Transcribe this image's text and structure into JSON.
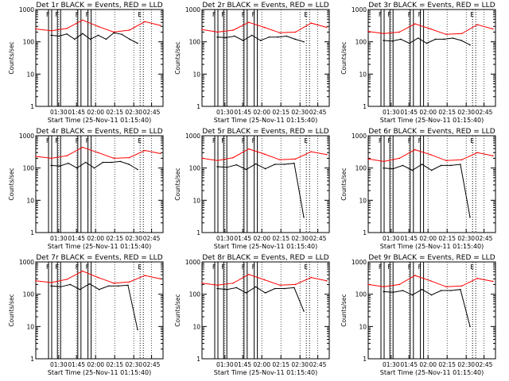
{
  "window": {
    "width": 640,
    "height": 480
  },
  "colors": {
    "events": "#000000",
    "lld": "#ff0000",
    "background": "#ffffff"
  },
  "chart_data": [
    {
      "type": "line",
      "title": "Det 1r BLACK = Events, RED = LLD",
      "xlabel": "Start Time (25-Nov-11 01:15:40)",
      "ylabel": "Counts/sec",
      "y_scale": "log",
      "ylim": [
        1,
        1000
      ],
      "y_ticks": [
        "1",
        "10",
        "100",
        "1000"
      ],
      "x_ticks": [
        "01:30",
        "01:45",
        "02:00",
        "02:15",
        "02:30",
        "02:45"
      ],
      "flags": [
        "F",
        "F",
        "F",
        "F",
        "E"
      ],
      "series": [
        {
          "name": "BLACK",
          "color": "black",
          "values": [
            160,
            150,
            175,
            120,
            180,
            120,
            160,
            120,
            190,
            170,
            120,
            90
          ]
        },
        {
          "name": "RED",
          "color": "red",
          "values": [
            250,
            220,
            260,
            470,
            300,
            200,
            230,
            420,
            320
          ]
        }
      ]
    },
    {
      "type": "line",
      "title": "Det 2r BLACK = Events, RED = LLD",
      "xlabel": "Start Time (25-Nov-11 01:15:40)",
      "ylabel": "Counts/sec",
      "y_scale": "log",
      "ylim": [
        1,
        1000
      ],
      "y_ticks": [
        "1",
        "10",
        "100",
        "1000"
      ],
      "x_ticks": [
        "01:30",
        "01:45",
        "02:00",
        "02:15",
        "02:30",
        "02:45"
      ],
      "flags": [
        "F",
        "F",
        "F",
        "F",
        "E"
      ],
      "series": [
        {
          "name": "BLACK",
          "color": "black",
          "values": [
            140,
            135,
            150,
            110,
            160,
            110,
            140,
            140,
            150,
            120,
            100
          ]
        },
        {
          "name": "RED",
          "color": "red",
          "values": [
            240,
            200,
            230,
            400,
            280,
            190,
            200,
            380,
            280
          ]
        }
      ]
    },
    {
      "type": "line",
      "title": "Det 3r BLACK = Events, RED = LLD",
      "xlabel": "Start Time (25-Nov-11 01:15:40)",
      "ylabel": "Counts/sec",
      "y_scale": "log",
      "ylim": [
        1,
        1000
      ],
      "y_ticks": [
        "1",
        "10",
        "100",
        "1000"
      ],
      "x_ticks": [
        "01:30",
        "01:45",
        "02:00",
        "02:15",
        "02:30",
        "02:45"
      ],
      "flags": [
        "F",
        "F",
        "F",
        "F",
        "E"
      ],
      "series": [
        {
          "name": "BLACK",
          "color": "black",
          "values": [
            110,
            105,
            120,
            90,
            130,
            90,
            120,
            120,
            130,
            110,
            80
          ]
        },
        {
          "name": "RED",
          "color": "red",
          "values": [
            210,
            180,
            200,
            360,
            250,
            170,
            180,
            340,
            250
          ]
        }
      ]
    },
    {
      "type": "line",
      "title": "Det 4r BLACK = Events, RED = LLD",
      "xlabel": "Start Time (25-Nov-11 01:15:40)",
      "ylabel": "Counts/sec",
      "y_scale": "log",
      "ylim": [
        1,
        1000
      ],
      "y_ticks": [
        "1",
        "10",
        "100",
        "1000"
      ],
      "x_ticks": [
        "01:30",
        "01:45",
        "02:00",
        "02:15",
        "02:30",
        "02:45"
      ],
      "flags": [
        "F",
        "F",
        "F",
        "F",
        "E"
      ],
      "series": [
        {
          "name": "BLACK",
          "color": "black",
          "values": [
            120,
            115,
            140,
            100,
            150,
            100,
            150,
            150,
            160,
            130,
            90
          ]
        },
        {
          "name": "RED",
          "color": "red",
          "values": [
            230,
            200,
            240,
            440,
            300,
            200,
            210,
            350,
            280
          ]
        }
      ]
    },
    {
      "type": "line",
      "title": "Det 5r BLACK = Events, RED = LLD",
      "xlabel": "Start Time (25-Nov-11 01:15:40)",
      "ylabel": "Counts/sec",
      "y_scale": "log",
      "ylim": [
        1,
        1000
      ],
      "y_ticks": [
        "1",
        "10",
        "100",
        "1000"
      ],
      "x_ticks": [
        "01:30",
        "01:45",
        "02:00",
        "02:15",
        "02:30",
        "02:45"
      ],
      "flags": [
        "F",
        "F",
        "F",
        "F",
        "E"
      ],
      "series": [
        {
          "name": "BLACK",
          "color": "black",
          "values": [
            110,
            105,
            125,
            90,
            135,
            95,
            130,
            130,
            140,
            3
          ]
        },
        {
          "name": "RED",
          "color": "red",
          "values": [
            200,
            170,
            210,
            390,
            270,
            180,
            190,
            320,
            260
          ]
        }
      ]
    },
    {
      "type": "line",
      "title": "Det 6r BLACK = Events, RED = LLD",
      "xlabel": "Start Time (25-Nov-11 01:15:40)",
      "ylabel": "Counts/sec",
      "y_scale": "log",
      "ylim": [
        1,
        1000
      ],
      "y_ticks": [
        "1",
        "10",
        "100",
        "1000"
      ],
      "x_ticks": [
        "01:30",
        "01:45",
        "02:00",
        "02:15",
        "02:30",
        "02:45"
      ],
      "flags": [
        "F",
        "F",
        "F",
        "F",
        "E"
      ],
      "series": [
        {
          "name": "BLACK",
          "color": "black",
          "values": [
            100,
            95,
            120,
            85,
            130,
            85,
            120,
            120,
            130,
            3
          ]
        },
        {
          "name": "RED",
          "color": "red",
          "values": [
            190,
            160,
            200,
            370,
            260,
            170,
            180,
            300,
            240
          ]
        }
      ]
    },
    {
      "type": "line",
      "title": "Det 7r BLACK = Events, RED = LLD",
      "xlabel": "Start Time (25-Nov-11 01:15:40)",
      "ylabel": "Counts/sec",
      "y_scale": "log",
      "ylim": [
        1,
        1000
      ],
      "y_ticks": [
        "1",
        "10",
        "100",
        "1000"
      ],
      "x_ticks": [
        "01:30",
        "01:45",
        "02:00",
        "02:15",
        "02:30",
        "02:45"
      ],
      "flags": [
        "F",
        "F",
        "F",
        "F",
        "E"
      ],
      "series": [
        {
          "name": "BLACK",
          "color": "black",
          "values": [
            180,
            170,
            200,
            140,
            210,
            140,
            180,
            180,
            190,
            8
          ]
        },
        {
          "name": "RED",
          "color": "red",
          "values": [
            260,
            230,
            290,
            520,
            330,
            220,
            240,
            380,
            300
          ]
        }
      ]
    },
    {
      "type": "line",
      "title": "Det 8r BLACK = Events, RED = LLD",
      "xlabel": "Start Time (25-Nov-11 01:15:40)",
      "ylabel": "Counts/sec",
      "y_scale": "log",
      "ylim": [
        1,
        1000
      ],
      "y_ticks": [
        "1",
        "10",
        "100",
        "1000"
      ],
      "x_ticks": [
        "01:30",
        "01:45",
        "02:00",
        "02:15",
        "02:30",
        "02:45"
      ],
      "flags": [
        "F",
        "F",
        "F",
        "F",
        "E"
      ],
      "series": [
        {
          "name": "BLACK",
          "color": "black",
          "values": [
            150,
            140,
            160,
            110,
            170,
            110,
            150,
            150,
            160,
            30
          ]
        },
        {
          "name": "RED",
          "color": "red",
          "values": [
            220,
            190,
            220,
            410,
            280,
            190,
            200,
            330,
            260
          ]
        }
      ]
    },
    {
      "type": "line",
      "title": "Det 9r BLACK = Events, RED = LLD",
      "xlabel": "Start Time (25-Nov-11 01:15:40)",
      "ylabel": "Counts/sec",
      "y_scale": "log",
      "ylim": [
        1,
        1000
      ],
      "y_ticks": [
        "1",
        "10",
        "100",
        "1000"
      ],
      "x_ticks": [
        "01:30",
        "01:45",
        "02:00",
        "02:15",
        "02:30",
        "02:45"
      ],
      "flags": [
        "F",
        "F",
        "F",
        "F",
        "E"
      ],
      "series": [
        {
          "name": "BLACK",
          "color": "black",
          "values": [
            120,
            115,
            130,
            95,
            140,
            95,
            130,
            130,
            140,
            10
          ]
        },
        {
          "name": "RED",
          "color": "red",
          "values": [
            200,
            170,
            200,
            380,
            260,
            170,
            180,
            310,
            250
          ]
        }
      ]
    }
  ]
}
